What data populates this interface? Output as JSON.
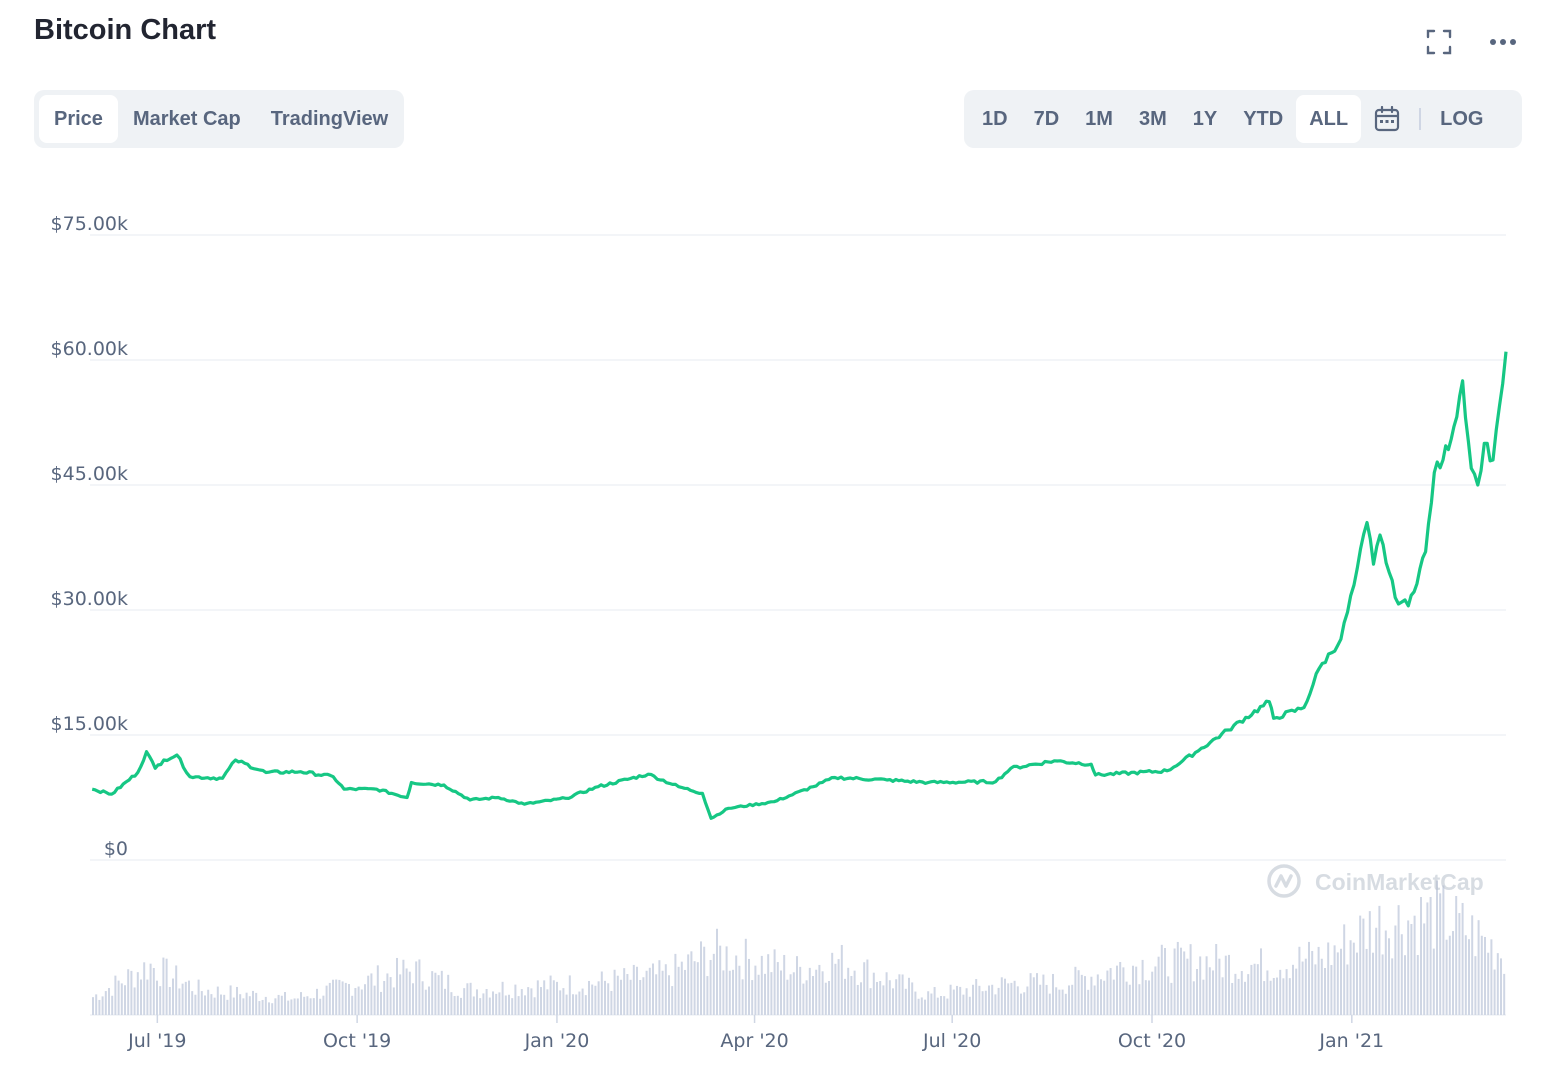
{
  "header": {
    "title": "Bitcoin Chart"
  },
  "tabs": [
    {
      "label": "Price",
      "active": true
    },
    {
      "label": "Market Cap",
      "active": false
    },
    {
      "label": "TradingView",
      "active": false
    }
  ],
  "ranges": [
    {
      "label": "1D",
      "active": false
    },
    {
      "label": "7D",
      "active": false
    },
    {
      "label": "1M",
      "active": false
    },
    {
      "label": "3M",
      "active": false
    },
    {
      "label": "1Y",
      "active": false
    },
    {
      "label": "YTD",
      "active": false
    },
    {
      "label": "ALL",
      "active": true
    }
  ],
  "log_label": "LOG",
  "icons": {
    "fullscreen": "fullscreen-icon",
    "more": "more-icon",
    "calendar": "calendar-icon"
  },
  "watermark": "CoinMarketCap",
  "colors": {
    "line": "#16c784",
    "volume": "#cfd6e4",
    "grid": "#eff2f5",
    "axis_text": "#58667e"
  },
  "chart_data": {
    "type": "line",
    "y_ticks": [
      "$0",
      "$15.00k",
      "$30.00k",
      "$45.00k",
      "$60.00k",
      "$75.00k"
    ],
    "ylim": [
      0,
      75000
    ],
    "x_ticks": [
      "Jul '19",
      "Oct '19",
      "Jan '20",
      "Apr '20",
      "Jul '20",
      "Oct '20",
      "Jan '21"
    ],
    "price_series": [
      [
        "2019-06-01",
        8500
      ],
      [
        "2019-06-10",
        7900
      ],
      [
        "2019-06-22",
        10500
      ],
      [
        "2019-06-26",
        13000
      ],
      [
        "2019-06-30",
        11000
      ],
      [
        "2019-07-04",
        12000
      ],
      [
        "2019-07-10",
        12600
      ],
      [
        "2019-07-16",
        10000
      ],
      [
        "2019-07-31",
        9800
      ],
      [
        "2019-08-06",
        12000
      ],
      [
        "2019-08-20",
        10500
      ],
      [
        "2019-09-05",
        10600
      ],
      [
        "2019-09-20",
        10000
      ],
      [
        "2019-09-25",
        8500
      ],
      [
        "2019-10-10",
        8500
      ],
      [
        "2019-10-24",
        7500
      ],
      [
        "2019-10-26",
        9300
      ],
      [
        "2019-11-10",
        9000
      ],
      [
        "2019-11-22",
        7200
      ],
      [
        "2019-12-05",
        7500
      ],
      [
        "2019-12-17",
        6700
      ],
      [
        "2020-01-05",
        7400
      ],
      [
        "2020-01-20",
        8800
      ],
      [
        "2020-02-12",
        10300
      ],
      [
        "2020-02-26",
        8800
      ],
      [
        "2020-03-08",
        8000
      ],
      [
        "2020-03-12",
        5000
      ],
      [
        "2020-03-20",
        6200
      ],
      [
        "2020-04-10",
        7000
      ],
      [
        "2020-04-28",
        8800
      ],
      [
        "2020-05-08",
        9900
      ],
      [
        "2020-06-01",
        9600
      ],
      [
        "2020-06-20",
        9300
      ],
      [
        "2020-07-21",
        9400
      ],
      [
        "2020-07-28",
        11000
      ],
      [
        "2020-08-17",
        11900
      ],
      [
        "2020-09-03",
        11500
      ],
      [
        "2020-09-05",
        10200
      ],
      [
        "2020-10-08",
        10700
      ],
      [
        "2020-10-21",
        12900
      ],
      [
        "2020-11-05",
        15600
      ],
      [
        "2020-11-24",
        19000
      ],
      [
        "2020-11-26",
        17000
      ],
      [
        "2020-12-10",
        18300
      ],
      [
        "2020-12-17",
        23000
      ],
      [
        "2020-12-27",
        26500
      ],
      [
        "2021-01-02",
        33000
      ],
      [
        "2021-01-08",
        40500
      ],
      [
        "2021-01-11",
        35500
      ],
      [
        "2021-01-14",
        39000
      ],
      [
        "2021-01-21",
        31500
      ],
      [
        "2021-01-27",
        30500
      ],
      [
        "2021-02-04",
        37000
      ],
      [
        "2021-02-08",
        46500
      ],
      [
        "2021-02-12",
        48000
      ],
      [
        "2021-02-17",
        52000
      ],
      [
        "2021-02-21",
        57500
      ],
      [
        "2021-02-25",
        47000
      ],
      [
        "2021-02-28",
        45000
      ],
      [
        "2021-03-03",
        50000
      ],
      [
        "2021-03-07",
        48000
      ],
      [
        "2021-03-10",
        54500
      ],
      [
        "2021-03-13",
        61000
      ]
    ],
    "volume_series": [
      [
        "2019-06-01",
        20
      ],
      [
        "2019-06-27",
        55
      ],
      [
        "2019-07-20",
        28
      ],
      [
        "2019-09-01",
        18
      ],
      [
        "2019-10-26",
        50
      ],
      [
        "2019-11-20",
        28
      ],
      [
        "2020-01-15",
        35
      ],
      [
        "2020-02-20",
        45
      ],
      [
        "2020-03-13",
        70
      ],
      [
        "2020-04-20",
        50
      ],
      [
        "2020-05-10",
        60
      ],
      [
        "2020-06-20",
        22
      ],
      [
        "2020-07-28",
        35
      ],
      [
        "2020-08-20",
        35
      ],
      [
        "2020-09-20",
        55
      ],
      [
        "2020-10-21",
        60
      ],
      [
        "2020-11-20",
        55
      ],
      [
        "2020-12-20",
        65
      ],
      [
        "2021-01-10",
        100
      ],
      [
        "2021-02-10",
        110
      ],
      [
        "2021-02-22",
        95
      ],
      [
        "2021-03-13",
        65
      ]
    ]
  }
}
